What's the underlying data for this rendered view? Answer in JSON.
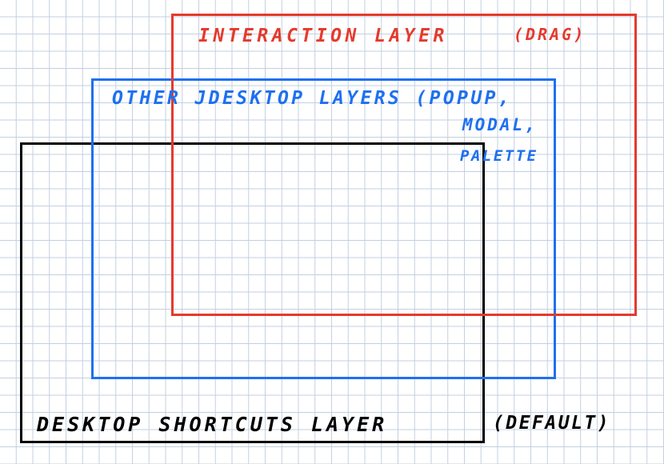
{
  "layers": {
    "interaction": {
      "label": "INTERACTION LAYER",
      "note": "(DRAG)",
      "color": "#e53a2c"
    },
    "other": {
      "label": "OTHER JDESKTOP LAYERS (POPUP,",
      "line2": "MODAL,",
      "line3": "PALETTE",
      "color": "#1e70f0"
    },
    "default": {
      "label": "DESKTOP SHORTCUTS LAYER",
      "note": "(DEFAULT)",
      "color": "#000000"
    }
  },
  "grid_color": "#c3cfe0"
}
